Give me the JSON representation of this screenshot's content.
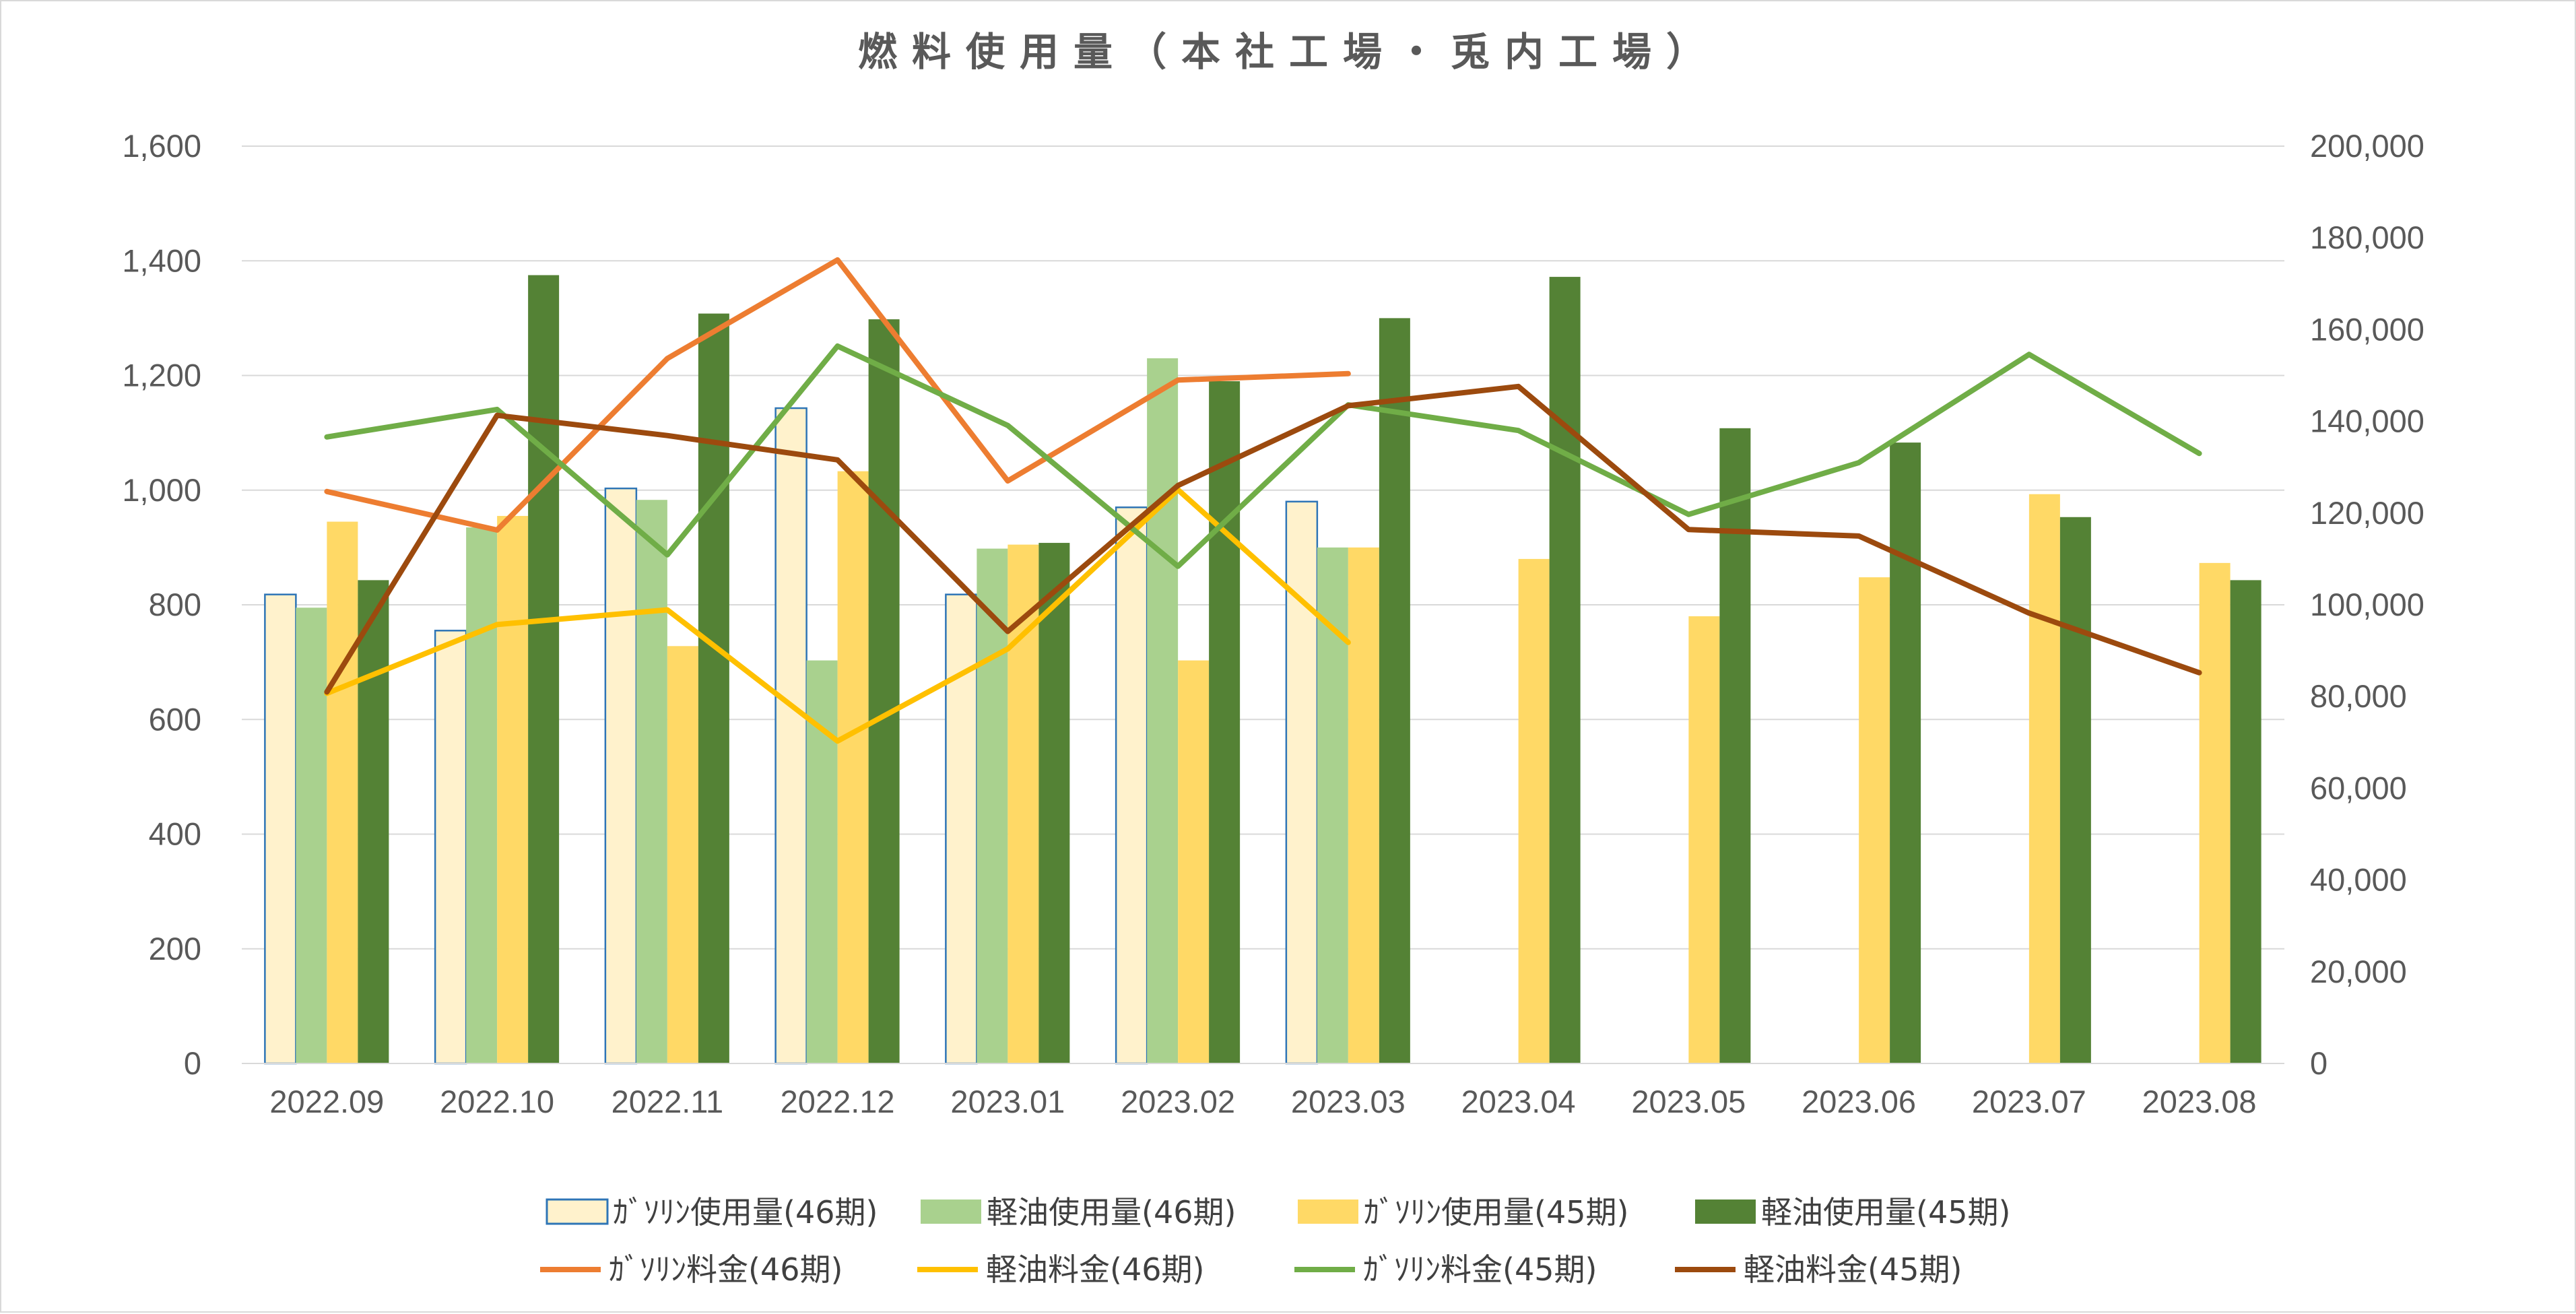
{
  "chart_data": {
    "type": "bar",
    "title": "燃料使用量（本社工場・兎内工場）",
    "categories": [
      "2022.09",
      "2022.10",
      "2022.11",
      "2022.12",
      "2023.01",
      "2023.02",
      "2023.03",
      "2023.04",
      "2023.05",
      "2023.06",
      "2023.07",
      "2023.08"
    ],
    "y_left": {
      "range": [
        0,
        1600
      ],
      "ticks": [
        "0",
        "200",
        "400",
        "600",
        "800",
        "1,000",
        "1,200",
        "1,400",
        "1,600"
      ]
    },
    "y_right": {
      "range": [
        0,
        200000
      ],
      "ticks": [
        "0",
        "20,000",
        "40,000",
        "60,000",
        "80,000",
        "100,000",
        "120,000",
        "140,000",
        "160,000",
        "180,000",
        "200,000"
      ]
    },
    "grid": true,
    "legend_position": "bottom",
    "bar_series": [
      {
        "name": "ｶﾞｿﾘﾝ使用量(46期)",
        "axis": "left",
        "fill": "#fff2cc",
        "stroke": "#2e75b6",
        "values": [
          818,
          755,
          1003,
          1143,
          818,
          970,
          980,
          null,
          null,
          null,
          null,
          null
        ]
      },
      {
        "name": "軽油使用量(46期)",
        "axis": "left",
        "fill": "#a9d18e",
        "stroke": "none",
        "values": [
          795,
          935,
          983,
          703,
          898,
          1230,
          900,
          null,
          null,
          null,
          null,
          null
        ]
      },
      {
        "name": "ｶﾞｿﾘﾝ使用量(45期)",
        "axis": "left",
        "fill": "#ffd966",
        "stroke": "none",
        "values": [
          945,
          955,
          728,
          1033,
          905,
          703,
          900,
          880,
          780,
          848,
          993,
          873
        ]
      },
      {
        "name": "軽油使用量(45期)",
        "axis": "left",
        "fill": "#548235",
        "stroke": "none",
        "values": [
          843,
          1375,
          1308,
          1298,
          908,
          1190,
          1300,
          1372,
          1108,
          1083,
          953,
          843
        ]
      }
    ],
    "line_series": [
      {
        "name": "ｶﾞｿﾘﾝ料金(46期)",
        "axis": "right",
        "color": "#ed7d31",
        "values": [
          124700,
          116300,
          153700,
          175200,
          127000,
          149000,
          150400,
          null,
          null,
          null,
          null,
          null
        ]
      },
      {
        "name": "軽油料金(46期)",
        "axis": "right",
        "color": "#ffc000",
        "values": [
          80700,
          95700,
          98900,
          70300,
          90400,
          125100,
          91800,
          null,
          null,
          null,
          null,
          null
        ]
      },
      {
        "name": "ｶﾞｿﾘﾝ料金(45期)",
        "axis": "right",
        "color": "#70ad47",
        "values": [
          136600,
          142600,
          110900,
          156400,
          139100,
          108400,
          143600,
          138000,
          119700,
          131000,
          154600,
          133000
        ]
      },
      {
        "name": "軽油料金(45期)",
        "axis": "right",
        "color": "#9c4a0e",
        "values": [
          81000,
          141300,
          136900,
          131600,
          94200,
          126000,
          143400,
          147600,
          116400,
          115000,
          98200,
          85200
        ]
      }
    ]
  }
}
